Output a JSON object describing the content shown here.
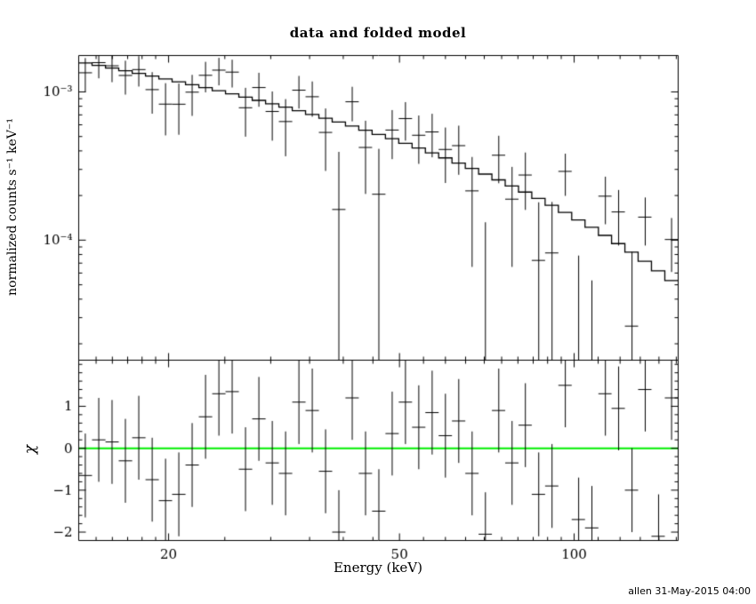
{
  "title": "data and folded model",
  "xlabel": "Energy (keV)",
  "signature": "allen 31-May-2015 04:00",
  "colors": {
    "background": "#ffffff",
    "axes": "#000000",
    "data": "#000000",
    "model": "#000000",
    "zero_line": "#00ee00"
  },
  "axes": {
    "x": {
      "scale": "log",
      "min": 14.0,
      "max": 151.1,
      "major_ticks": [
        {
          "value": 20,
          "label": "20"
        },
        {
          "value": 50,
          "label": "50"
        },
        {
          "value": 100,
          "label": "100"
        }
      ],
      "minor_ticks": [
        15,
        16,
        17,
        18,
        19,
        25,
        30,
        35,
        40,
        45,
        55,
        60,
        65,
        70,
        75,
        80,
        85,
        90,
        95,
        110,
        120,
        130,
        140,
        150
      ]
    },
    "y_top": {
      "scale": "log",
      "min": 1.55e-05,
      "max": 0.00176,
      "label": "normalized counts s⁻¹ keV⁻¹",
      "major_ticks": [
        {
          "value": 0.001,
          "label": "10⁻³"
        },
        {
          "value": 0.0001,
          "label": "10⁻⁴"
        }
      ],
      "minor_ticks": [
        2e-05,
        3e-05,
        4e-05,
        5e-05,
        6e-05,
        7e-05,
        8e-05,
        9e-05,
        0.0002,
        0.0003,
        0.0004,
        0.0005,
        0.0006,
        0.0007,
        0.0008,
        0.0009
      ]
    },
    "y_bottom": {
      "scale": "linear",
      "min": -2.2,
      "max": 2.1,
      "label": "χ",
      "major_ticks": [
        {
          "value": 1,
          "label": "1"
        },
        {
          "value": 0,
          "label": "0"
        },
        {
          "value": -1,
          "label": "−1"
        },
        {
          "value": -2,
          "label": "−2"
        }
      ],
      "minor_ticks": [
        -1.8,
        -1.6,
        -1.4,
        -1.2,
        -0.8,
        -0.6,
        -0.4,
        -0.2,
        0.2,
        0.4,
        0.6,
        0.8,
        1.2,
        1.4,
        1.6,
        1.8,
        2.0
      ]
    }
  },
  "chart_data": {
    "type": "scatter",
    "description": "X-ray spectrum: data with error bars and stepped folded model (top, log-log); chi residuals with unit error bars and green zero line (bottom).",
    "bin_edges_kev": [
      14.0,
      14.76,
      15.57,
      16.41,
      17.31,
      18.25,
      19.24,
      20.28,
      21.39,
      22.55,
      23.78,
      25.07,
      26.43,
      27.87,
      29.39,
      30.98,
      32.67,
      34.44,
      36.31,
      38.28,
      40.35,
      42.54,
      44.85,
      47.29,
      49.85,
      52.56,
      55.41,
      58.41,
      61.58,
      64.92,
      68.44,
      72.15,
      76.06,
      80.18,
      84.52,
      89.11,
      93.93,
      99.03,
      104.4,
      110.1,
      116.0,
      122.3,
      128.9,
      135.9,
      143.3,
      151.1
    ],
    "bin_centers_kev": [
      14.37,
      15.16,
      15.98,
      16.85,
      17.77,
      18.74,
      19.76,
      20.83,
      21.96,
      23.16,
      24.42,
      25.74,
      27.14,
      28.62,
      30.18,
      31.82,
      33.55,
      35.37,
      37.29,
      39.31,
      41.45,
      43.7,
      46.07,
      48.57,
      51.2,
      53.98,
      56.92,
      60.0,
      63.26,
      66.7,
      70.32,
      74.14,
      78.16,
      82.4,
      86.88,
      91.59,
      96.56,
      101.8,
      107.3,
      113.2,
      119.3,
      125.8,
      132.6,
      139.8,
      147.2
    ],
    "rate": [
      0.001346,
      0.001576,
      0.0015,
      0.001291,
      0.001415,
      0.001036,
      0.000827,
      0.000826,
      0.000996,
      0.001294,
      0.001402,
      0.00136,
      0.000782,
      0.00107,
      0.000738,
      0.000631,
      0.001027,
      0.000928,
      0.000533,
      0.000161,
      0.000858,
      0.000422,
      0.000204,
      0.000553,
      0.000661,
      0.00051,
      0.000537,
      0.000409,
      0.000434,
      0.000215,
      -9e-06,
      0.000374,
      0.000189,
      0.000275,
      7.3e-05,
      8.2e-05,
      0.000291,
      -5.3e-06,
      -2.35e-05,
      0.000198,
      0.000155,
      2.63e-05,
      0.000143,
      -3.21e-05,
      0.000101
    ],
    "rate_err": [
      0.000345,
      0.000341,
      0.000337,
      0.000332,
      0.000328,
      0.000323,
      0.000318,
      0.000312,
      0.000307,
      0.000301,
      0.000295,
      0.000289,
      0.000283,
      0.000276,
      0.000269,
      0.000263,
      0.000255,
      0.000248,
      0.00024,
      0.000233,
      0.000225,
      0.000217,
      0.000209,
      0.000201,
      0.000192,
      0.000183,
      0.000175,
      0.000166,
      0.000158,
      0.000149,
      0.000141,
      0.000132,
      0.000123,
      0.000115,
      0.000107,
      9.9e-05,
      9.2e-05,
      8.4e-05,
      7.7e-05,
      7e-05,
      6.3e-05,
      5.7e-05,
      5.1e-05,
      4.5e-05,
      4e-05
    ],
    "model": [
      0.00157,
      0.001508,
      0.001449,
      0.001391,
      0.001333,
      0.001278,
      0.001224,
      0.00117,
      0.001119,
      0.001068,
      0.001018,
      0.00097,
      0.000923,
      0.000877,
      0.000832,
      0.000789,
      0.000746,
      0.000705,
      0.000665,
      0.000626,
      0.000588,
      0.000552,
      0.000517,
      0.000483,
      0.00045,
      0.000418,
      0.000388,
      0.000359,
      0.000331,
      0.000305,
      0.000279,
      0.000255,
      0.000232,
      0.000211,
      0.000191,
      0.000172,
      0.000154,
      0.000137,
      0.000122,
      0.0001077,
      9.48e-05,
      8.29e-05,
      7.2e-05,
      6.22e-05,
      5.34e-05
    ],
    "chi": [
      -0.65,
      0.2,
      0.15,
      -0.3,
      0.25,
      -0.75,
      -1.25,
      -1.1,
      -0.4,
      0.75,
      1.3,
      1.35,
      -0.5,
      0.7,
      -0.35,
      -0.6,
      1.1,
      0.9,
      -0.55,
      -2.0,
      1.2,
      -0.6,
      -1.5,
      0.35,
      1.1,
      0.5,
      0.85,
      0.3,
      0.65,
      -0.6,
      -2.05,
      0.9,
      -0.35,
      0.55,
      -1.1,
      -0.9,
      1.5,
      -1.7,
      -1.9,
      1.3,
      0.95,
      -1.0,
      1.4,
      -2.1,
      1.2
    ],
    "chi_err": 1.0
  }
}
